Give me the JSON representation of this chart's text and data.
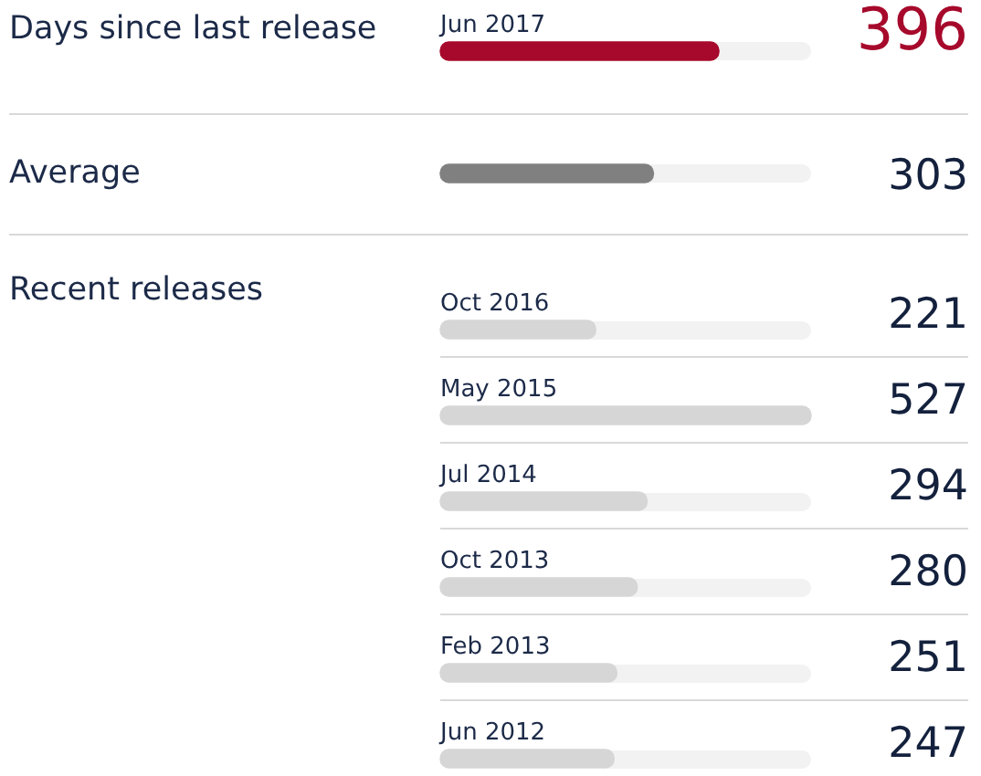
{
  "chart_data": {
    "type": "bar",
    "orientation": "horizontal",
    "title": "Days since last release",
    "annotations": [
      "Average",
      "Recent releases"
    ],
    "categories": [
      "Jun 2017",
      null,
      "Oct 2016",
      "May 2015",
      "Jul 2014",
      "Oct 2013",
      "Feb 2013",
      "Jun 2012"
    ],
    "values": [
      396,
      303,
      221,
      527,
      294,
      280,
      251,
      247
    ],
    "colors": [
      "#a6092b",
      "#808080",
      "#d6d6d6",
      "#d6d6d6",
      "#d6d6d6",
      "#d6d6d6",
      "#d6d6d6",
      "#d6d6d6"
    ],
    "data_labels": true
  }
}
